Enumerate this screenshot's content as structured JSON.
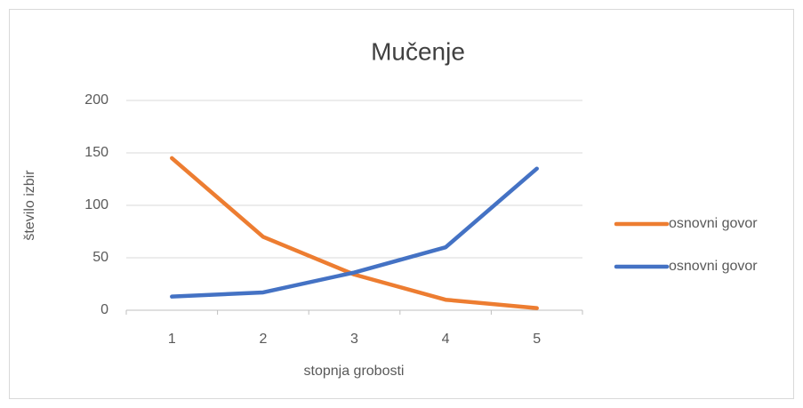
{
  "chart_data": {
    "type": "line",
    "title": "Mučenje",
    "x_label": "stopnja grobosti",
    "y_label": "število izbir",
    "categories": [
      1,
      2,
      3,
      4,
      5
    ],
    "series": [
      {
        "name": "osnovni govor",
        "color": "#ed7d31",
        "values": [
          145,
          70,
          34,
          10,
          2
        ]
      },
      {
        "name": "osnovni govor",
        "color": "#4472c4",
        "values": [
          13,
          17,
          36,
          60,
          135
        ]
      }
    ],
    "ylim": [
      0,
      200
    ],
    "yticks": [
      0,
      50,
      100,
      150,
      200
    ],
    "grid": true,
    "legend": "right"
  }
}
